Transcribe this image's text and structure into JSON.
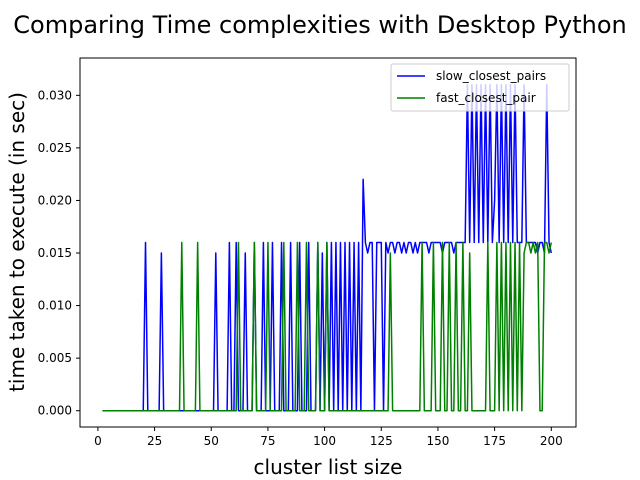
{
  "chart_data": {
    "type": "line",
    "title": "Comparing Time complexities with Desktop Python",
    "xlabel": "cluster list size",
    "ylabel": "time taken to execute (in sec)",
    "xlim": [
      -7.9,
      210.9
    ],
    "ylim": [
      -0.00155,
      0.03355
    ],
    "xticks": [
      0,
      25,
      50,
      75,
      100,
      125,
      150,
      175,
      200
    ],
    "yticks": [
      0.0,
      0.005,
      0.01,
      0.015,
      0.02,
      0.025,
      0.03
    ],
    "ytick_labels": [
      "0.000",
      "0.005",
      "0.010",
      "0.015",
      "0.020",
      "0.025",
      "0.030"
    ],
    "legend_position": "top-right",
    "grid": false,
    "series": [
      {
        "name": "slow_closest_pairs",
        "color": "#0000ff",
        "x": [
          2,
          20,
          21,
          22,
          27,
          28,
          29,
          51,
          52,
          53,
          57,
          58,
          59,
          60,
          61,
          62,
          64,
          65,
          66,
          68,
          69,
          70,
          72,
          73,
          74,
          76,
          77,
          78,
          80,
          81,
          82,
          84,
          85,
          86,
          88,
          89,
          90,
          92,
          93,
          94,
          96,
          97,
          98,
          99,
          100,
          101,
          102,
          103,
          104,
          105,
          106,
          107,
          108,
          109,
          110,
          111,
          112,
          113,
          114,
          115,
          116,
          117,
          118,
          119,
          120,
          121,
          122,
          123,
          124,
          125,
          126,
          127,
          128,
          129,
          130,
          131,
          132,
          133,
          134,
          135,
          136,
          137,
          138,
          139,
          140,
          141,
          142,
          143,
          144,
          145,
          146,
          147,
          148,
          149,
          150,
          151,
          152,
          153,
          154,
          155,
          156,
          157,
          158,
          159,
          160,
          161,
          162,
          163,
          164,
          165,
          166,
          167,
          168,
          169,
          170,
          171,
          172,
          173,
          174,
          175,
          176,
          177,
          178,
          179,
          180,
          181,
          182,
          183,
          184,
          185,
          186,
          187,
          188,
          189,
          190,
          191,
          192,
          193,
          194,
          195,
          196,
          197,
          198,
          199,
          200
        ],
        "y": [
          0.0,
          0.0,
          0.016,
          0.0,
          0.0,
          0.015,
          0.0,
          0.0,
          0.015,
          0.0,
          0.0,
          0.016,
          0.0,
          0.0,
          0.016,
          0.0,
          0.0,
          0.015,
          0.0,
          0.0,
          0.016,
          0.0,
          0.0,
          0.016,
          0.0,
          0.0,
          0.016,
          0.0,
          0.0,
          0.016,
          0.0,
          0.0,
          0.016,
          0.0,
          0.0,
          0.016,
          0.0,
          0.0,
          0.016,
          0.0,
          0.0,
          0.016,
          0.0,
          0.015,
          0.0,
          0.016,
          0.0,
          0.016,
          0.0,
          0.016,
          0.0,
          0.016,
          0.0,
          0.016,
          0.0,
          0.016,
          0.0,
          0.016,
          0.0,
          0.016,
          0.0,
          0.022,
          0.016,
          0.015,
          0.016,
          0.016,
          0.0,
          0.016,
          0.016,
          0.016,
          0.0,
          0.016,
          0.015,
          0.016,
          0.016,
          0.015,
          0.016,
          0.016,
          0.015,
          0.016,
          0.015,
          0.016,
          0.016,
          0.015,
          0.016,
          0.015,
          0.016,
          0.016,
          0.016,
          0.016,
          0.015,
          0.016,
          0.016,
          0.016,
          0.016,
          0.016,
          0.015,
          0.016,
          0.016,
          0.016,
          0.016,
          0.015,
          0.016,
          0.016,
          0.016,
          0.016,
          0.016,
          0.031,
          0.016,
          0.031,
          0.016,
          0.031,
          0.016,
          0.031,
          0.016,
          0.031,
          0.016,
          0.031,
          0.016,
          0.02,
          0.031,
          0.016,
          0.031,
          0.016,
          0.031,
          0.016,
          0.031,
          0.016,
          0.031,
          0.016,
          0.016,
          0.016,
          0.031,
          0.016,
          0.016,
          0.016,
          0.016,
          0.016,
          0.015,
          0.016,
          0.016,
          0.015,
          0.031,
          0.016,
          0.015
        ]
      },
      {
        "name": "fast_closest_pair",
        "color": "#008000",
        "x": [
          2,
          36,
          37,
          38,
          43,
          44,
          45,
          61,
          62,
          63,
          68,
          69,
          70,
          74,
          75,
          76,
          81,
          82,
          83,
          87,
          88,
          89,
          91,
          92,
          93,
          96,
          97,
          98,
          100,
          101,
          102,
          128,
          129,
          130,
          142,
          143,
          144,
          147,
          148,
          149,
          151,
          152,
          153,
          154,
          155,
          156,
          157,
          158,
          159,
          160,
          161,
          162,
          163,
          164,
          165,
          171,
          172,
          173,
          175,
          176,
          177,
          178,
          179,
          180,
          181,
          182,
          183,
          184,
          185,
          186,
          187,
          188,
          189,
          190,
          191,
          192,
          193,
          194,
          195,
          196,
          197,
          198,
          199,
          200
        ],
        "y": [
          0.0,
          0.0,
          0.016,
          0.0,
          0.0,
          0.016,
          0.0,
          0.0,
          0.016,
          0.0,
          0.0,
          0.016,
          0.0,
          0.0,
          0.016,
          0.0,
          0.0,
          0.016,
          0.0,
          0.0,
          0.016,
          0.0,
          0.0,
          0.016,
          0.0,
          0.0,
          0.016,
          0.0,
          0.0,
          0.016,
          0.0,
          0.0,
          0.015,
          0.0,
          0.0,
          0.016,
          0.0,
          0.0,
          0.016,
          0.0,
          0.0,
          0.016,
          0.0,
          0.0,
          0.016,
          0.0,
          0.0,
          0.016,
          0.0,
          0.0,
          0.016,
          0.0,
          0.0,
          0.015,
          0.0,
          0.0,
          0.016,
          0.0,
          0.0,
          0.016,
          0.0,
          0.016,
          0.0,
          0.016,
          0.0,
          0.016,
          0.0,
          0.016,
          0.0,
          0.016,
          0.0,
          0.015,
          0.016,
          0.016,
          0.015,
          0.016,
          0.015,
          0.016,
          0.0,
          0.0,
          0.016,
          0.016,
          0.015,
          0.016
        ]
      }
    ]
  }
}
